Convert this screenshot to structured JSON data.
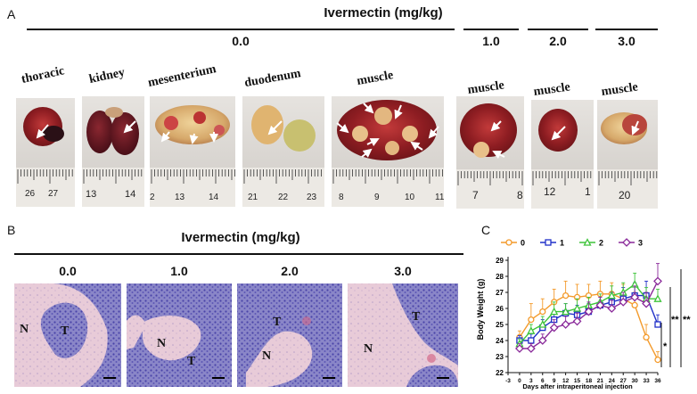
{
  "panelA": {
    "letter": "A",
    "title": "Ivermectin (mg/kg)",
    "groups": [
      {
        "dose": "0.0"
      },
      {
        "dose": "1.0"
      },
      {
        "dose": "2.0"
      },
      {
        "dose": "3.0"
      }
    ],
    "tissues": [
      {
        "label": "thoracic",
        "ruler": [
          "26",
          "27"
        ]
      },
      {
        "label": "kidney",
        "ruler": [
          "13",
          "14"
        ]
      },
      {
        "label": "mesenterium",
        "ruler": [
          "2",
          "13",
          "14"
        ]
      },
      {
        "label": "duodenum",
        "ruler": [
          "21",
          "22",
          "23"
        ]
      },
      {
        "label": "muscle",
        "ruler": [
          "8",
          "9",
          "10",
          "11"
        ]
      },
      {
        "label": "muscle",
        "ruler": [
          "7",
          "8"
        ]
      },
      {
        "label": "muscle",
        "ruler": [
          "12",
          "1"
        ]
      },
      {
        "label": "muscle",
        "ruler": [
          "20"
        ]
      }
    ]
  },
  "panelB": {
    "letter": "B",
    "title": "Ivermectin (mg/kg)",
    "doses": [
      "0.0",
      "1.0",
      "2.0",
      "3.0"
    ],
    "marker_N": "N",
    "marker_T": "T"
  },
  "panelC": {
    "letter": "C",
    "significance": [
      "*",
      "**",
      "**"
    ]
  },
  "chart_data": {
    "type": "line",
    "xlabel": "Days after intraperitoneal injection",
    "ylabel": "Body Weight (g)",
    "xlim": [
      -3,
      36
    ],
    "ylim": [
      22,
      29
    ],
    "xticks": [
      -3,
      0,
      3,
      6,
      9,
      12,
      15,
      18,
      21,
      24,
      27,
      30,
      33,
      36
    ],
    "yticks": [
      22,
      23,
      24,
      25,
      26,
      27,
      28,
      29
    ],
    "legend_position": "top",
    "series": [
      {
        "name": "0",
        "color": "#f39a2b",
        "marker": "circle",
        "x": [
          0,
          3,
          6,
          9,
          12,
          15,
          18,
          21,
          24,
          27,
          30,
          33,
          36
        ],
        "y": [
          24.2,
          25.3,
          25.8,
          26.4,
          26.8,
          26.7,
          26.8,
          26.9,
          26.9,
          26.6,
          26.2,
          24.2,
          22.8
        ],
        "err": [
          0.4,
          1.0,
          0.8,
          0.8,
          0.9,
          0.8,
          0.7,
          0.8,
          0.7,
          0.9,
          0.8,
          0.8,
          0.5
        ]
      },
      {
        "name": "1",
        "color": "#2030c8",
        "marker": "square",
        "x": [
          0,
          3,
          6,
          9,
          12,
          15,
          18,
          21,
          24,
          27,
          30,
          33,
          36
        ],
        "y": [
          24.0,
          24.0,
          24.8,
          25.3,
          25.7,
          25.6,
          25.8,
          26.2,
          26.4,
          26.6,
          26.8,
          26.8,
          25.0
        ],
        "err": [
          0.3,
          0.4,
          0.5,
          0.5,
          0.6,
          0.6,
          0.5,
          0.5,
          0.6,
          0.7,
          0.8,
          0.9,
          0.6
        ]
      },
      {
        "name": "2",
        "color": "#3ec43a",
        "marker": "triangle",
        "x": [
          0,
          3,
          6,
          9,
          12,
          15,
          18,
          21,
          24,
          27,
          30,
          33,
          36
        ],
        "y": [
          23.8,
          24.6,
          25.0,
          25.8,
          25.8,
          26.0,
          26.2,
          26.4,
          26.8,
          27.0,
          27.5,
          26.6,
          26.6
        ],
        "err": [
          0.3,
          0.4,
          0.5,
          0.6,
          0.5,
          0.6,
          0.5,
          0.5,
          0.6,
          0.6,
          0.7,
          0.7,
          0.6
        ]
      },
      {
        "name": "3",
        "color": "#8a2a9a",
        "marker": "diamond",
        "x": [
          0,
          3,
          6,
          9,
          12,
          15,
          18,
          21,
          24,
          27,
          30,
          33,
          36
        ],
        "y": [
          23.5,
          23.5,
          24.0,
          24.8,
          25.0,
          25.2,
          25.8,
          26.2,
          26.0,
          26.4,
          26.7,
          26.3,
          27.7
        ],
        "err": [
          0.3,
          0.3,
          0.4,
          0.5,
          0.5,
          0.5,
          0.6,
          0.5,
          0.5,
          0.6,
          0.7,
          0.7,
          1.1
        ]
      }
    ]
  }
}
